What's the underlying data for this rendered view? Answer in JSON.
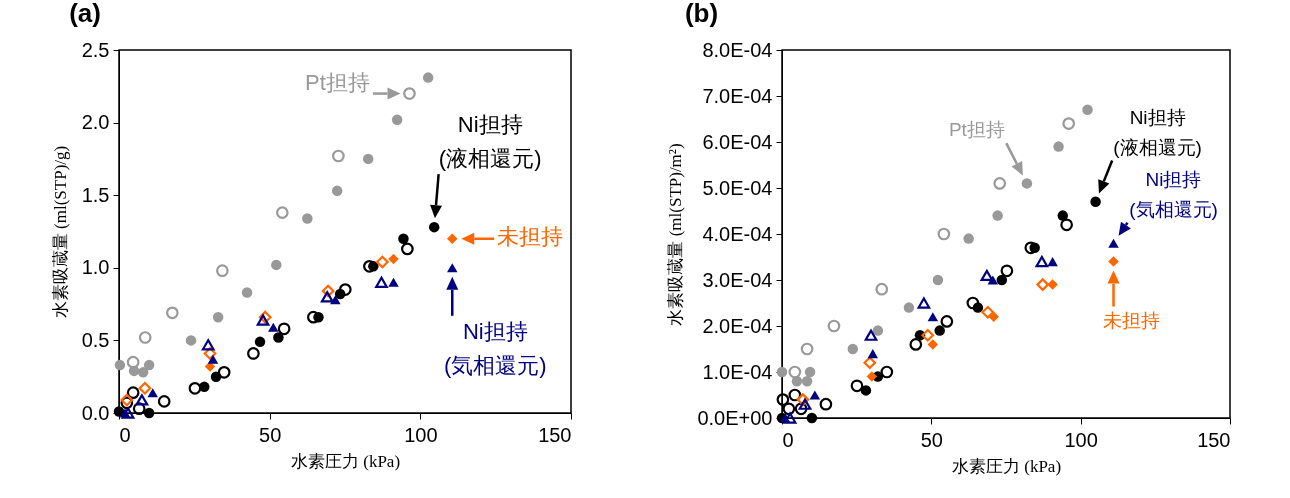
{
  "chart_data": [
    {
      "type": "scatter",
      "title": "(a)",
      "xlabel": "水素圧力 (kPa)",
      "ylabel": "水素吸蔵量 (ml(STP)/g)",
      "xlim": [
        0,
        150
      ],
      "xticks": [
        0,
        50,
        100,
        150
      ],
      "ylim": [
        0,
        2.5
      ],
      "yticks": [
        {
          "value": 0,
          "label": "0.0"
        },
        {
          "value": 0.5,
          "label": "0.5"
        },
        {
          "value": 1,
          "label": "1.0"
        },
        {
          "value": 1.5,
          "label": "1.5"
        },
        {
          "value": 2,
          "label": "2.0"
        },
        {
          "value": 2.5,
          "label": "2.5"
        }
      ],
      "series": [
        {
          "color": "#999999",
          "marker": "circle",
          "x": [
            0.3,
            5,
            8,
            10,
            23.9,
            32.9,
            42.5,
            52.2,
            62.5,
            72.4,
            82.7,
            92.3,
            102.6
          ],
          "values": [
            0.33,
            0.29,
            0.28,
            0.33,
            0.5,
            0.66,
            0.83,
            1.02,
            1.34,
            1.53,
            1.75,
            2.02,
            2.31
          ]
        },
        {
          "color": "#999999",
          "marker": "circle",
          "x": [
            4.7,
            8.7,
            17.7,
            34.3,
            54.2,
            72.8,
            96.4
          ],
          "values": [
            0.35,
            0.52,
            0.69,
            0.98,
            1.38,
            1.77,
            2.2
          ]
        },
        {
          "color": "#000000",
          "marker": "circle",
          "x": [
            0,
            10,
            28.3,
            32.2,
            46.8,
            52.9,
            66.2,
            73.4,
            84.4,
            94.4,
            104.6
          ],
          "values": [
            0.01,
            0,
            0.18,
            0.25,
            0.49,
            0.52,
            0.66,
            0.82,
            1.01,
            1.2,
            1.28
          ]
        },
        {
          "color": "#000000",
          "marker": "circle",
          "x": [
            2.6,
            4.7,
            6.7,
            15,
            25.2,
            34.9,
            44.6,
            54.8,
            64.5,
            75.1,
            83.1,
            95.7
          ],
          "values": [
            0.07,
            0.14,
            0.03,
            0.08,
            0.17,
            0.28,
            0.41,
            0.58,
            0.66,
            0.85,
            1.01,
            1.13
          ]
        },
        {
          "color": "#ff6600",
          "marker": "diamond",
          "x": [
            30.2,
            91.1,
            110.6
          ],
          "values": [
            0.32,
            1.06,
            1.2
          ]
        },
        {
          "color": "#ff6600",
          "marker": "diamond",
          "x": [
            2.6,
            8.6,
            30.2,
            48.5,
            69.4,
            87.4
          ],
          "values": [
            0.09,
            0.17,
            0.41,
            0.66,
            0.84,
            1.04
          ]
        },
        {
          "color": "#000080",
          "marker": "triangle",
          "x": [
            2,
            11.2,
            31.2,
            51.2,
            71.8,
            91.1,
            110.6
          ],
          "values": [
            0,
            0.14,
            0.37,
            0.59,
            0.78,
            0.9,
            1
          ]
        },
        {
          "color": "#000080",
          "marker": "triangle",
          "x": [
            3,
            7.6,
            29.6,
            47.8,
            69.1,
            87.1
          ],
          "values": [
            0,
            0.09,
            0.47,
            0.64,
            0.8,
            0.9
          ]
        }
      ],
      "annotations": [
        {
          "text": "Pt担持",
          "x": 96.4,
          "y": 2.2
        },
        {
          "text": "Ni担持\n(液相還元)",
          "x": 104.6,
          "y": 1.28
        },
        {
          "text": "未担持",
          "x": 110.6,
          "y": 1.2
        },
        {
          "text": "Ni担持\n(気相還元)",
          "x": 110.6,
          "y": 1
        }
      ]
    },
    {
      "type": "scatter",
      "title": "(b)",
      "xlabel": "水素圧力 (kPa)",
      "ylabel": "水素吸蔵量 (ml(STP)/m²)",
      "xlim": [
        0,
        150
      ],
      "xticks": [
        0,
        50,
        100,
        150
      ],
      "ylim": [
        0,
        0.0008
      ],
      "yticks": [
        {
          "value": 0,
          "label": "0.0E+00"
        },
        {
          "value": 0.0001,
          "label": "1.0E-04"
        },
        {
          "value": 0.0002,
          "label": "2.0E-04"
        },
        {
          "value": 0.0003,
          "label": "3.0E-04"
        },
        {
          "value": 0.0004,
          "label": "4.0E-04"
        },
        {
          "value": 0.0005,
          "label": "5.0E-04"
        },
        {
          "value": 0.0006,
          "label": "6.0E-04"
        },
        {
          "value": 0.0007,
          "label": "7.0E-04"
        },
        {
          "value": 0.0008,
          "label": "8.0E-04"
        }
      ],
      "series": [
        {
          "color": "#999999",
          "marker": "circle",
          "x": [
            0,
            5,
            8.4,
            9.4,
            23.7,
            32.1,
            42.5,
            52.2,
            62.5,
            72.2,
            82,
            92.6,
            102.3
          ],
          "values": [
            0.0001,
            8e-05,
            8e-05,
            0.0001,
            0.00015,
            0.00019,
            0.00024,
            0.0003,
            0.00039,
            0.00044,
            0.00051,
            0.00059,
            0.00067
          ]
        },
        {
          "color": "#999999",
          "marker": "circle",
          "x": [
            4.3,
            8.4,
            17.4,
            33.4,
            54.2,
            72.9,
            96
          ],
          "values": [
            0.0001,
            0.00015,
            0.0002,
            0.00028,
            0.0004,
            0.00051,
            0.00064
          ]
        },
        {
          "color": "#000000",
          "marker": "circle",
          "x": [
            0,
            10,
            28.1,
            32.1,
            46.2,
            52.8,
            65.6,
            73.6,
            84.6,
            94,
            105
          ],
          "values": [
            0,
            0,
            6e-05,
            9e-05,
            0.00018,
            0.00019,
            0.00024,
            0.0003,
            0.00037,
            0.00044,
            0.00047
          ]
        },
        {
          "color": "#000000",
          "marker": "circle",
          "x": [
            0.3,
            2.3,
            4.3,
            6.4,
            14.7,
            25.1,
            35.1,
            44.8,
            55.2,
            63.9,
            75.3,
            83.3,
            95.3
          ],
          "values": [
            4e-05,
            2e-05,
            5e-05,
            2e-05,
            3e-05,
            7e-05,
            0.0001,
            0.00016,
            0.00021,
            0.00025,
            0.00032,
            0.00037,
            0.00042
          ]
        },
        {
          "color": "#ff6600",
          "marker": "diamond",
          "x": [
            30.1,
            50.5,
            70.9,
            90.6,
            111
          ],
          "values": [
            9e-05,
            0.00016,
            0.00022,
            0.00029,
            0.00034
          ]
        },
        {
          "color": "#ff6600",
          "marker": "diamond",
          "x": [
            7,
            29.4,
            48.8,
            68.9,
            87.3
          ],
          "values": [
            4e-05,
            0.00012,
            0.00018,
            0.00023,
            0.00029
          ]
        },
        {
          "color": "#000080",
          "marker": "triangle",
          "x": [
            1,
            11,
            30.4,
            50.5,
            70.6,
            90.6,
            111
          ],
          "values": [
            0,
            5e-05,
            0.00014,
            0.00022,
            0.0003,
            0.00034,
            0.00038
          ]
        },
        {
          "color": "#000080",
          "marker": "triangle",
          "x": [
            2.7,
            7.7,
            29.8,
            47.5,
            68.6,
            87
          ],
          "values": [
            0,
            3e-05,
            0.00018,
            0.00025,
            0.00031,
            0.00034
          ]
        }
      ],
      "annotations": [
        {
          "text": "Pt担持",
          "x": 82,
          "y": 0.00051
        },
        {
          "text": "Ni担持\n(液相還元)",
          "x": 105,
          "y": 0.00047
        },
        {
          "text": "Ni担持\n(気相還元)",
          "x": 111,
          "y": 0.00038
        },
        {
          "text": "未担持",
          "x": 111,
          "y": 0.00034
        }
      ]
    }
  ]
}
